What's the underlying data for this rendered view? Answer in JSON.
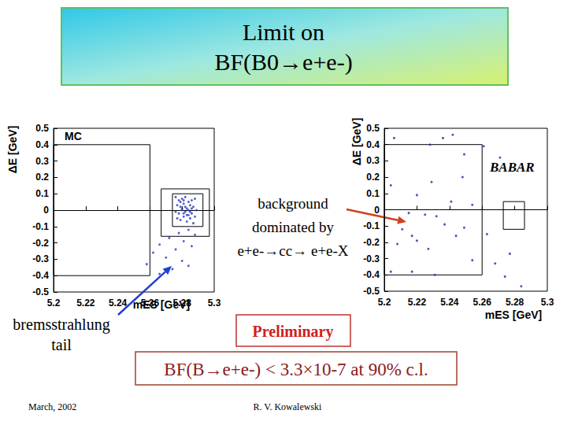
{
  "slide": {
    "title": [
      "Limit on",
      "BF(B0→e+e-)"
    ],
    "annotations": {
      "bremsstrahlung": [
        "bremsstrahlung",
        "tail"
      ],
      "background": [
        "background",
        "dominated by",
        "e+e-→cc→ e+e-X"
      ],
      "preliminary": "Preliminary",
      "result": "BF(B→e+e-) < 3.3×10-7 at 90% c.l.",
      "date": "March, 2002",
      "author": "R. V. Kowalewski"
    }
  },
  "chart_data": [
    {
      "type": "scatter",
      "annotation": "MC",
      "xlabel": "mES [GeV]",
      "ylabel": "ΔE [GeV]",
      "xlim": [
        5.2,
        5.3
      ],
      "ylim": [
        -0.5,
        0.5
      ],
      "xticks": [
        5.2,
        5.22,
        5.24,
        5.26,
        5.28,
        5.3
      ],
      "yticks": [
        -0.5,
        -0.4,
        -0.3,
        -0.2,
        -0.1,
        0,
        0.1,
        0.2,
        0.3,
        0.4,
        0.5
      ],
      "grid": false,
      "color": "#2a3cc0",
      "marker": "circle",
      "x": [
        5.276,
        5.278,
        5.28,
        5.282,
        5.284,
        5.286,
        5.288,
        5.277,
        5.279,
        5.281,
        5.283,
        5.285,
        5.287,
        5.289,
        5.276,
        5.278,
        5.28,
        5.282,
        5.284,
        5.286,
        5.288,
        5.277,
        5.279,
        5.281,
        5.283,
        5.285,
        5.287,
        5.28,
        5.281,
        5.282,
        5.283,
        5.284,
        5.285,
        5.286,
        5.279,
        5.281,
        5.284,
        5.278,
        5.288,
        5.272,
        5.281,
        5.266,
        5.276,
        5.286,
        5.262,
        5.27,
        5.28,
        5.258,
        5.274,
        5.266,
        5.284
      ],
      "y": [
        0.08,
        0.06,
        0.07,
        0.08,
        0.05,
        0.06,
        0.07,
        0.03,
        0.02,
        0.04,
        0.01,
        0.03,
        0.02,
        0,
        -0.01,
        -0.02,
        0,
        -0.01,
        -0.03,
        -0.02,
        -0.04,
        -0.05,
        -0.06,
        -0.04,
        -0.07,
        -0.05,
        -0.08,
        0.01,
        -0.02,
        0.02,
        -0.03,
        0,
        -0.01,
        0.01,
        0.05,
        0.06,
        -0.12,
        -0.14,
        -0.15,
        -0.17,
        -0.19,
        -0.21,
        -0.24,
        -0.22,
        -0.26,
        -0.29,
        -0.31,
        -0.33,
        -0.36,
        -0.39,
        -0.34
      ],
      "boxes": [
        {
          "x": [
            5.2,
            5.26
          ],
          "y": [
            -0.4,
            0.4
          ]
        },
        {
          "x": [
            5.267,
            5.297
          ],
          "y": [
            -0.16,
            0.13
          ]
        },
        {
          "x": [
            5.274,
            5.293
          ],
          "y": [
            -0.1,
            0.1
          ]
        }
      ]
    },
    {
      "type": "scatter",
      "annotation": "BABAR",
      "xlabel": "mES [GeV]",
      "ylabel": "ΔE [GeV]",
      "xlim": [
        5.2,
        5.3
      ],
      "ylim": [
        -0.5,
        0.5
      ],
      "xticks": [
        5.2,
        5.22,
        5.24,
        5.26,
        5.28,
        5.3
      ],
      "yticks": [
        -0.5,
        -0.4,
        -0.3,
        -0.2,
        -0.1,
        0,
        0.1,
        0.2,
        0.3,
        0.4,
        0.5
      ],
      "grid": false,
      "color": "#1a2fa0",
      "marker": "circle",
      "x": [
        5.206,
        5.228,
        5.236,
        5.242,
        5.249,
        5.261,
        5.271,
        5.229,
        5.248,
        5.204,
        5.215,
        5.225,
        5.232,
        5.237,
        5.211,
        5.249,
        5.217,
        5.22,
        5.208,
        5.227,
        5.244,
        5.263,
        5.254,
        5.277,
        5.274,
        5.284,
        5.217,
        5.204,
        5.231,
        5.268,
        5.22,
        5.241,
        5.254
      ],
      "y": [
        0.44,
        0.4,
        0.44,
        0.46,
        0.34,
        0.39,
        0.32,
        0.17,
        0.2,
        0.15,
        -0.02,
        -0.03,
        -0.04,
        -0.09,
        -0.12,
        -0.11,
        -0.16,
        -0.19,
        -0.21,
        -0.24,
        -0.16,
        -0.15,
        -0.31,
        -0.27,
        -0.41,
        -0.47,
        -0.38,
        -0.38,
        -0.4,
        -0.33,
        0.09,
        0.05,
        0.03
      ],
      "boxes": [
        {
          "x": [
            5.2,
            5.26
          ],
          "y": [
            -0.4,
            0.4
          ]
        },
        {
          "x": [
            5.273,
            5.286
          ],
          "y": [
            -0.12,
            0.05
          ]
        }
      ]
    }
  ]
}
